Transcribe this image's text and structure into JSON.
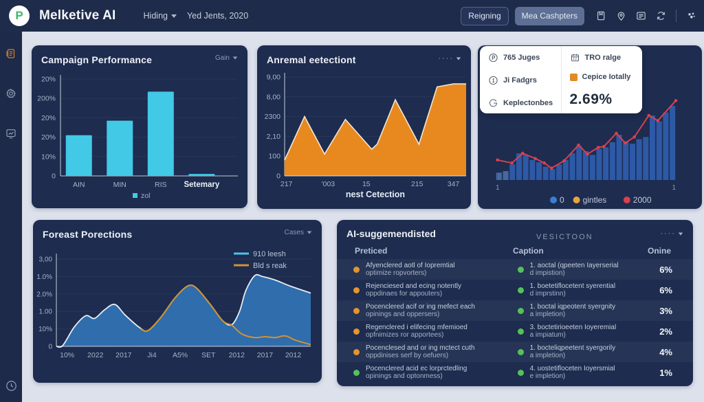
{
  "topbar": {
    "logo_letter": "P",
    "title": "Melketive AI",
    "menu": [
      {
        "label": "Hiding",
        "caret": true
      },
      {
        "label": "Yed Jents, 2020",
        "caret": false
      }
    ],
    "buttons": [
      {
        "label": "Reigning",
        "style": "outline"
      },
      {
        "label": "Mea Cashpters",
        "style": "filled"
      }
    ],
    "icons": [
      "bookmark",
      "location-pin",
      "list-card",
      "refresh",
      "profile-dots"
    ]
  },
  "sidebar": {
    "icons": [
      {
        "name": "report",
        "active": true
      },
      {
        "name": "gear",
        "active": false
      },
      {
        "name": "chart",
        "active": false
      },
      {
        "name": "clock",
        "active": false,
        "bottom": true
      }
    ]
  },
  "kpi": {
    "stats_left": [
      {
        "icon": "circle-p",
        "label": "765 Juges"
      },
      {
        "icon": "circle-1",
        "label": "Ji Fadgrs"
      },
      {
        "icon": "g-mark",
        "label": "Keplectonbes"
      }
    ],
    "stats_right": [
      {
        "icon": "calendar",
        "label": "TRO ralge"
      },
      {
        "icon": "orange-square",
        "label": "Cepice Iotally"
      }
    ],
    "big_value": "2.69%"
  },
  "table": {
    "title": "AI-suggemendisted",
    "subtitle": "VESICTOON",
    "columns": [
      "Preticed",
      "Caption",
      "Onine"
    ],
    "rows": [
      {
        "dot": "orange",
        "text1": "Afyenclered aotl of Iopremtial",
        "text1b": "optimize ropvorters)",
        "dot2": "green",
        "text2": "1. aoctal (qpeeten Iayerserial",
        "text2b": "d impistion)",
        "value": "6%"
      },
      {
        "dot": "orange",
        "text1": "Rejenciesed and ecing notently",
        "text1b": "oppdinaes for appouters)",
        "dot2": "green",
        "text2": "1. boetetiflocetent syerential",
        "text2b": "d imprstinn)",
        "value": "6%"
      },
      {
        "dot": "orange",
        "text1": "Pocenclered acif or ing mefect each",
        "text1b": "opinings and oppersers)",
        "dot2": "green",
        "text2": "1. boctal iqpeotent syergnity",
        "text2b": "a impletion)",
        "value": "3%"
      },
      {
        "dot": "orange",
        "text1": "Regenclered i elifecing mfemioed",
        "text1b": "opfnimizes ror apportees)",
        "dot2": "green",
        "text2": "3. boctetirioeeten Ioyeremial",
        "text2b": "a impiatum)",
        "value": "2%"
      },
      {
        "dot": "orange",
        "text1": "Pocenclesed and or ing mctect cuth",
        "text1b": "oppdinises serf by oefuers)",
        "dot2": "green",
        "text2": "1. bocteliqpeetent syergorily",
        "text2b": "a impletion)",
        "value": "4%"
      },
      {
        "dot": "green",
        "text1": "Pocenclered acid ec lorprctedling",
        "text1b": "opinings and optonmess)",
        "dot2": "green",
        "text2": "4. uostetifloceten Ioyersmial",
        "text2b": "e impletion)",
        "value": "1%"
      }
    ]
  },
  "chart_data": [
    {
      "id": "campaign",
      "type": "bar",
      "title": "Campaign Performance",
      "menu_label": "Gain",
      "categories": [
        "AIN",
        "MIN",
        "RIS",
        "Setemary"
      ],
      "values": [
        42,
        57,
        87,
        2
      ],
      "ylim": [
        0,
        100
      ],
      "ytick_labels": [
        "0",
        "10%",
        "20%",
        "20%",
        "200%",
        "20%"
      ],
      "bar_color": "#41c9e6",
      "legend": [
        {
          "label": "zol",
          "color": "#41c9e6"
        }
      ]
    },
    {
      "id": "anomaly",
      "type": "area",
      "title": "Anremal eetectiont",
      "xlabel": "nest Cetection",
      "xtick_labels": [
        "217",
        "'003",
        "15",
        "215",
        "347"
      ],
      "xtick_pos": [
        1,
        24,
        45,
        73,
        93
      ],
      "ytick_labels": [
        "0",
        "100",
        "2,10",
        "2300",
        "8,00",
        "9,00"
      ],
      "points": [
        [
          0,
          16
        ],
        [
          11,
          60
        ],
        [
          22,
          22
        ],
        [
          33.5,
          57
        ],
        [
          48,
          27
        ],
        [
          51,
          32
        ],
        [
          61,
          77
        ],
        [
          74,
          32
        ],
        [
          84,
          90
        ],
        [
          93,
          93
        ],
        [
          100,
          93
        ]
      ],
      "fill_color": "#e8891f",
      "edge_color": "#f2e7d4"
    },
    {
      "id": "kpi-combo",
      "type": "bar-line",
      "bar_values": [
        10,
        12,
        21,
        36,
        34,
        27,
        24,
        18,
        15,
        21,
        27,
        36,
        46,
        39,
        34,
        42,
        44,
        51,
        61,
        52,
        49,
        55,
        58,
        87,
        79,
        91,
        100
      ],
      "line_points": [
        [
          1,
          27
        ],
        [
          9,
          23
        ],
        [
          15,
          36
        ],
        [
          22,
          29
        ],
        [
          27,
          23
        ],
        [
          31,
          16
        ],
        [
          38,
          26
        ],
        [
          46,
          47
        ],
        [
          51,
          35
        ],
        [
          57,
          44
        ],
        [
          60,
          45
        ],
        [
          67,
          63
        ],
        [
          72,
          50
        ],
        [
          77,
          58
        ],
        [
          85,
          87
        ],
        [
          90,
          80
        ],
        [
          100,
          107
        ]
      ],
      "ymax": 110,
      "bar_color": "#2d59a6",
      "line_color": "#d8414e",
      "xtick_labels": [
        "1",
        "1"
      ],
      "legend": [
        {
          "label": "0",
          "color": "#3a7fd5"
        },
        {
          "label": "gintles",
          "color": "#e8a33d"
        },
        {
          "label": "2000",
          "color": "#d8414e"
        }
      ]
    },
    {
      "id": "forecast",
      "type": "area-line",
      "title": "Foreast Porections",
      "menu_label": "Cases",
      "ytick_labels": [
        "0",
        "10%",
        "1.00",
        "2.0%",
        "1.0%",
        "3,00"
      ],
      "xtick_labels": [
        "10%",
        "2022",
        "2017",
        "Ji4",
        "A5%",
        "SET",
        "2012",
        "2017",
        "2012"
      ],
      "area_points": [
        [
          0,
          0
        ],
        [
          2.5,
          1
        ],
        [
          7,
          22
        ],
        [
          11.5,
          35
        ],
        [
          15,
          32
        ],
        [
          19,
          42
        ],
        [
          23,
          48
        ],
        [
          27,
          36
        ],
        [
          32.5,
          22
        ],
        [
          36,
          18
        ],
        [
          41,
          33
        ],
        [
          46.5,
          55
        ],
        [
          51.5,
          69
        ],
        [
          55,
          67
        ],
        [
          60.5,
          48
        ],
        [
          65.5,
          29
        ],
        [
          69,
          25
        ],
        [
          72,
          40
        ],
        [
          74.5,
          64
        ],
        [
          78,
          81
        ],
        [
          81,
          80
        ],
        [
          86,
          76
        ],
        [
          92,
          69
        ],
        [
          100,
          61
        ]
      ],
      "line_points": [
        [
          33,
          20
        ],
        [
          36,
          18
        ],
        [
          41,
          33
        ],
        [
          46.5,
          55
        ],
        [
          51.5,
          69
        ],
        [
          55,
          67
        ],
        [
          60.5,
          48
        ],
        [
          65.5,
          29
        ],
        [
          69,
          24
        ],
        [
          73,
          14
        ],
        [
          78,
          10
        ],
        [
          82,
          11
        ],
        [
          86,
          10
        ],
        [
          90,
          12
        ],
        [
          94,
          7
        ],
        [
          100,
          2
        ]
      ],
      "area_color": "#2f6dad",
      "area_edge": "#e9edf4",
      "line_color": "#d39134",
      "legend": [
        {
          "label": "910 leesh",
          "color": "#4ac3e8"
        },
        {
          "label": "Bld s reak",
          "color": "#d39134"
        }
      ]
    }
  ],
  "colors": {
    "topbar_bg": "#1e2b4a",
    "card_bg": "#1d2c4f",
    "main_bg": "#dde1ec",
    "accent_cyan": "#41c9e6",
    "accent_orange": "#e8891f",
    "accent_blue": "#2d59a6",
    "accent_red": "#d8414e"
  }
}
